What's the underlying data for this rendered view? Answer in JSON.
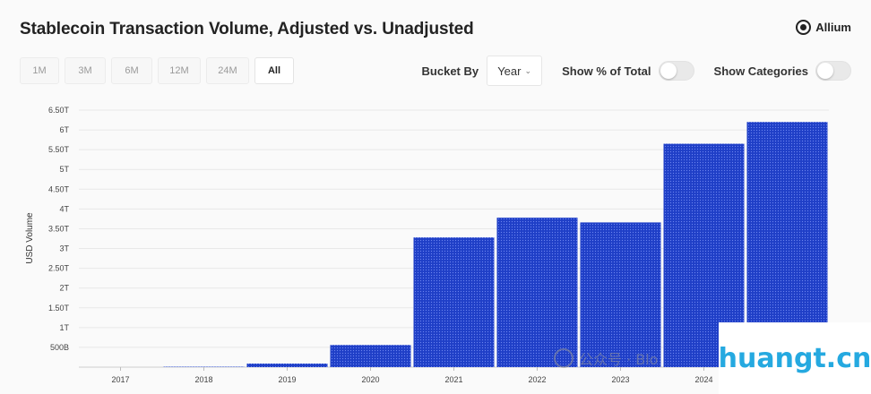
{
  "header": {
    "title": "Stablecoin Transaction Volume, Adjusted vs. Unadjusted",
    "brand": "Allium"
  },
  "ranges": [
    {
      "label": "1M",
      "active": false
    },
    {
      "label": "3M",
      "active": false
    },
    {
      "label": "6M",
      "active": false
    },
    {
      "label": "12M",
      "active": false
    },
    {
      "label": "24M",
      "active": false
    },
    {
      "label": "All",
      "active": true
    }
  ],
  "controls": {
    "bucket_label": "Bucket By",
    "bucket_value": "Year",
    "show_pct_label": "Show % of Total",
    "show_pct_on": false,
    "show_categories_label": "Show Categories",
    "show_categories_on": false
  },
  "watermark": {
    "wechat_text": "公众号 · Blo",
    "site": "huangt.cn"
  },
  "chart_data": {
    "type": "bar",
    "ylabel": "USD Volume",
    "categories": [
      "2017",
      "2018",
      "2019",
      "2020",
      "2021",
      "2022",
      "2023",
      "2024"
    ],
    "values": [
      0,
      0.01,
      0.09,
      0.56,
      3.28,
      3.78,
      3.66,
      5.65
    ],
    "extra_bar_value": 6.2,
    "yticks": [
      {
        "value": 0.5,
        "label": "500B"
      },
      {
        "value": 1,
        "label": "1T"
      },
      {
        "value": 1.5,
        "label": "1.50T"
      },
      {
        "value": 2,
        "label": "2T"
      },
      {
        "value": 2.5,
        "label": "2.50T"
      },
      {
        "value": 3,
        "label": "3T"
      },
      {
        "value": 3.5,
        "label": "3.50T"
      },
      {
        "value": 4,
        "label": "4T"
      },
      {
        "value": 4.5,
        "label": "4.50T"
      },
      {
        "value": 5,
        "label": "5T"
      },
      {
        "value": 5.5,
        "label": "5.50T"
      },
      {
        "value": 6,
        "label": "6T"
      },
      {
        "value": 6.5,
        "label": "6.50T"
      }
    ],
    "ylim": [
      0,
      6.5
    ],
    "unit": "trillion USD",
    "bar_color": "#1f3fc7",
    "grid": true
  }
}
